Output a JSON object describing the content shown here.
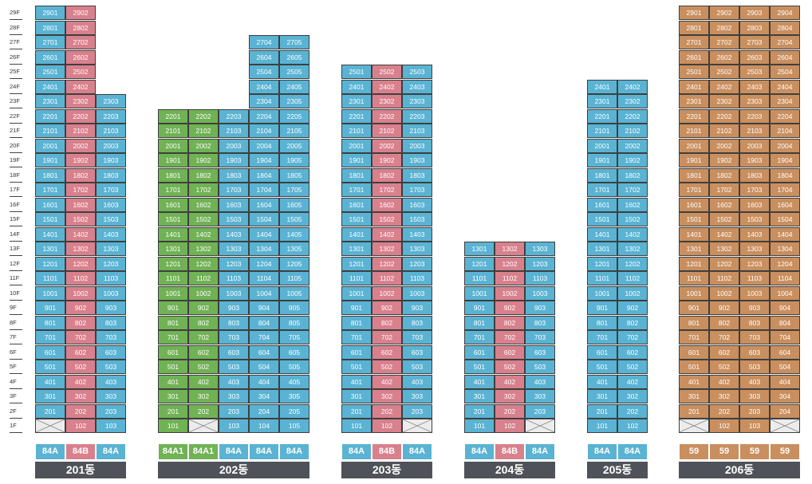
{
  "floor_labels": [
    "29F",
    "28F",
    "27F",
    "26F",
    "25F",
    "24F",
    "23F",
    "22F",
    "21F",
    "20F",
    "19F",
    "18F",
    "17F",
    "16F",
    "15F",
    "14F",
    "13F",
    "12F",
    "11F",
    "10F",
    "9F",
    "8F",
    "7F",
    "6F",
    "5F",
    "4F",
    "3F",
    "2F",
    "1F"
  ],
  "colors": {
    "blue": "#5ab3d3",
    "pink": "#d9808d",
    "green": "#70b254",
    "brown": "#c98f5f",
    "name_bar": "#4f5258",
    "empty": "#ececec"
  },
  "buildings": [
    {
      "name": "201동",
      "columns": [
        {
          "line": 1,
          "top_floor": 29,
          "color": "blue",
          "empty_floors": [
            1
          ],
          "type": "84A"
        },
        {
          "line": 2,
          "top_floor": 29,
          "color": "pink",
          "empty_floors": [],
          "type": "84B"
        },
        {
          "line": 3,
          "top_floor": 23,
          "color": "blue",
          "empty_floors": [],
          "type": "84A"
        }
      ]
    },
    {
      "name": "202동",
      "columns": [
        {
          "line": 1,
          "top_floor": 22,
          "color": "green",
          "empty_floors": [],
          "type": "84A1"
        },
        {
          "line": 2,
          "top_floor": 22,
          "color": "green",
          "empty_floors": [
            1
          ],
          "type": "84A1"
        },
        {
          "line": 3,
          "top_floor": 22,
          "color": "blue",
          "empty_floors": [],
          "type": "84A"
        },
        {
          "line": 4,
          "top_floor": 27,
          "color": "blue",
          "empty_floors": [],
          "type": "84A"
        },
        {
          "line": 5,
          "top_floor": 27,
          "color": "blue",
          "empty_floors": [],
          "type": "84A"
        }
      ]
    },
    {
      "name": "203동",
      "columns": [
        {
          "line": 1,
          "top_floor": 25,
          "color": "blue",
          "empty_floors": [],
          "type": "84A"
        },
        {
          "line": 2,
          "top_floor": 25,
          "color": "pink",
          "empty_floors": [],
          "type": "84B"
        },
        {
          "line": 3,
          "top_floor": 25,
          "color": "blue",
          "empty_floors": [
            1
          ],
          "type": "84A"
        }
      ]
    },
    {
      "name": "204동",
      "columns": [
        {
          "line": 1,
          "top_floor": 13,
          "color": "blue",
          "empty_floors": [],
          "type": "84A"
        },
        {
          "line": 2,
          "top_floor": 13,
          "color": "pink",
          "empty_floors": [],
          "type": "84B"
        },
        {
          "line": 3,
          "top_floor": 13,
          "color": "blue",
          "empty_floors": [
            1
          ],
          "type": "84A"
        }
      ]
    },
    {
      "name": "205동",
      "columns": [
        {
          "line": 1,
          "top_floor": 24,
          "color": "blue",
          "empty_floors": [],
          "type": "84A"
        },
        {
          "line": 2,
          "top_floor": 24,
          "color": "blue",
          "empty_floors": [],
          "type": "84A"
        }
      ]
    },
    {
      "name": "206동",
      "columns": [
        {
          "line": 1,
          "top_floor": 29,
          "color": "brown",
          "empty_floors": [
            1
          ],
          "type": "59"
        },
        {
          "line": 2,
          "top_floor": 29,
          "color": "brown",
          "empty_floors": [],
          "type": "59"
        },
        {
          "line": 3,
          "top_floor": 29,
          "color": "brown",
          "empty_floors": [],
          "type": "59"
        },
        {
          "line": 4,
          "top_floor": 29,
          "color": "brown",
          "empty_floors": [
            1
          ],
          "type": "59"
        }
      ]
    }
  ]
}
